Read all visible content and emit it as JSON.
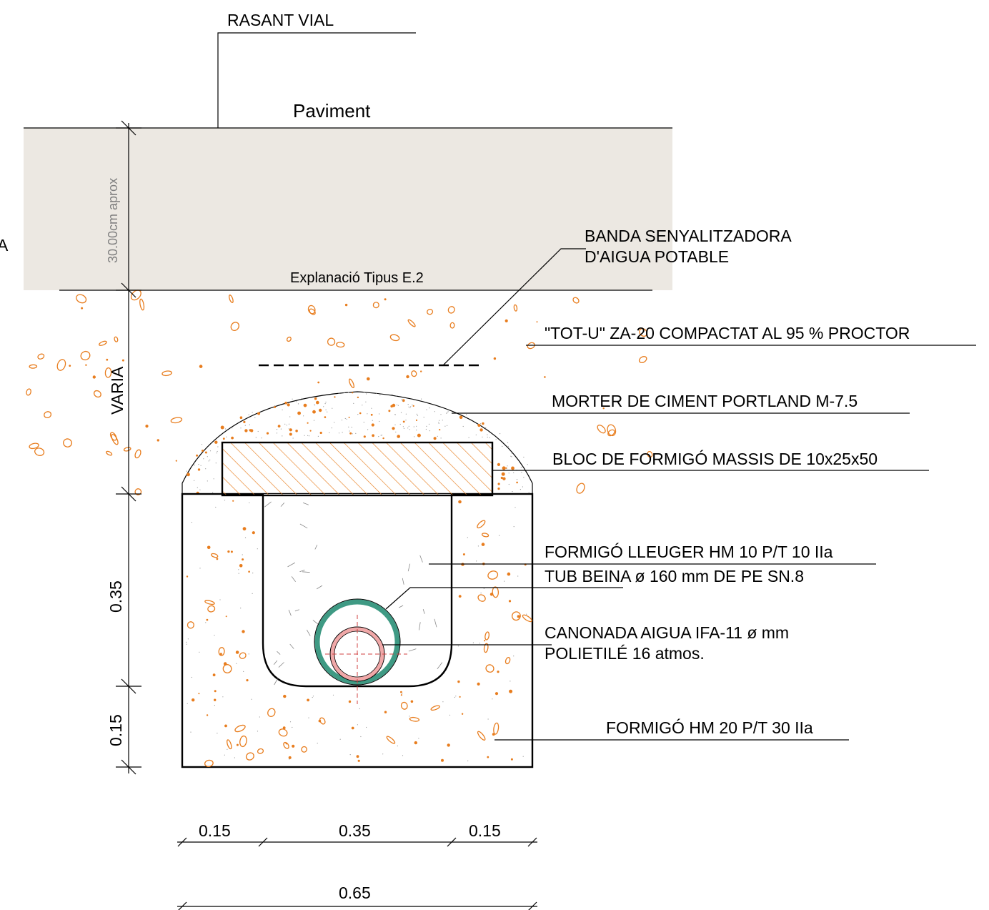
{
  "labels": {
    "rasant": "RASANT VIAL",
    "paviment": "Paviment",
    "explanacio": "Explanació Tipus E.2",
    "banda_line1": "BANDA SENYALITZADORA",
    "banda_line2": "D'AIGUA POTABLE",
    "totu": "\"TOT-U\"  ZA-20 COMPACTAT AL 95 % PROCTOR",
    "morter": "MORTER DE CIMENT PORTLAND M-7.5",
    "bloc": "BLOC DE FORMIGÓ MASSIS DE 10x25x50",
    "lleuger": "FORMIGÓ LLEUGER HM 10 P/T 10 IIa",
    "tub": "TUB BEINA  ø 160 mm DE PE SN.8",
    "canonada_line1": "CANONADA AIGUA IFA-11 ø  mm",
    "canonada_line2": "POLIETILÉ 16 atmos.",
    "formigo": "FORMIGÓ HM 20 P/T 30 IIa",
    "edge_fragment": "A"
  },
  "dimensions": {
    "pavement_depth": "30.00cm aprox",
    "fill_depth": "VARIA",
    "trench_upper": "0.35",
    "trench_lower": "0.15",
    "width_left": "0.15",
    "width_mid": "0.35",
    "width_right": "0.15",
    "width_total": "0.65"
  },
  "colors": {
    "pavement": "#ece8e2",
    "aggregate": "#e87d1e",
    "hatch": "#e87d1e",
    "sleeve_pipe": "#3f9a84",
    "water_pipe": "#f0a8a8",
    "water_pipe_stroke": "#c06060",
    "axis": "#d04040"
  }
}
